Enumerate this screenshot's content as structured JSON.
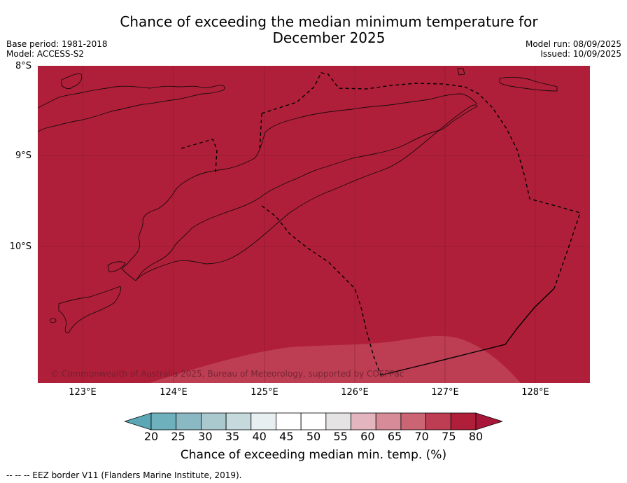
{
  "title_line1": "Chance of exceeding the median minimum temperature for",
  "title_line2": "December 2025",
  "base_period": "Base period: 1981-2018",
  "model": "Model: ACCESS-S2",
  "model_run": "Model run: 08/09/2025",
  "issued": "Issued: 10/09/2025",
  "latitudes": [
    "8°S",
    "9°S",
    "10°S"
  ],
  "longitudes": [
    "123°E",
    "124°E",
    "125°E",
    "126°E",
    "127°E",
    "128°E"
  ],
  "copyright": "© Commonwealth of Australia 2025, Bureau of Meteorology, supported by COSPPac",
  "colorbar": {
    "ticks": [
      "20",
      "25",
      "30",
      "35",
      "40",
      "45",
      "50",
      "55",
      "60",
      "65",
      "70",
      "75",
      "80"
    ],
    "label": "Chance of exceeding median min. temp. (%)",
    "colors": [
      "#5ba7b5",
      "#6fb0bd",
      "#8ab9c4",
      "#a9c9cf",
      "#c6d9dc",
      "#e7eff1",
      "#ffffff",
      "#ffffff",
      "#e6e3e4",
      "#e2b5bf",
      "#d78b98",
      "#cb6574",
      "#bd3e53",
      "#b01f39",
      "#a8173a"
    ]
  },
  "map": {
    "main_color": "#b01f39",
    "lower_color": "#bd3e53"
  },
  "footer": "--  --  -- EEZ border V11 (Flanders Marine Institute, 2019)."
}
